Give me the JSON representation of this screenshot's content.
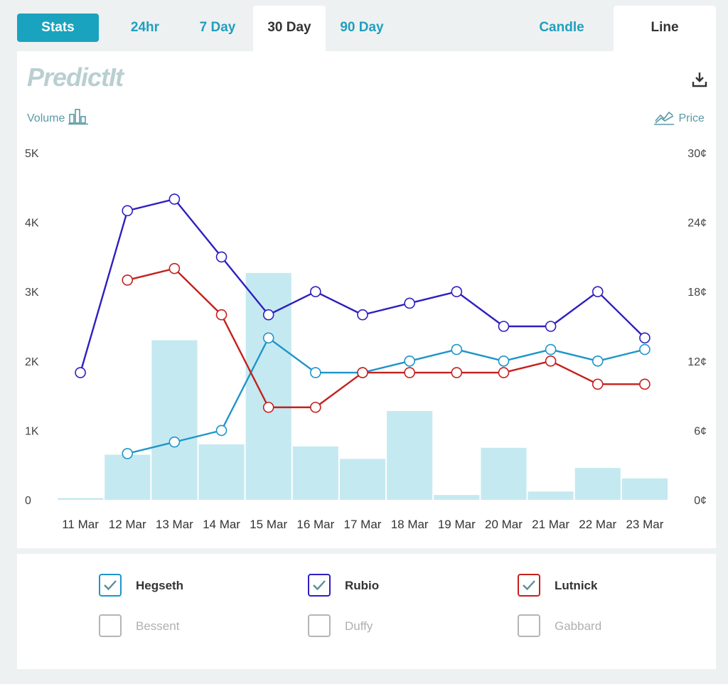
{
  "tabs": {
    "stats": "Stats",
    "ranges": [
      {
        "label": "24hr",
        "active": false
      },
      {
        "label": "7 Day",
        "active": false
      },
      {
        "label": "30 Day",
        "active": true
      },
      {
        "label": "90 Day",
        "active": false
      }
    ],
    "chart_types": [
      {
        "label": "Candle",
        "active": false
      },
      {
        "label": "Line",
        "active": true
      }
    ]
  },
  "brand": {
    "logo_text": "PredictIt"
  },
  "axis_captions": {
    "volume": "Volume",
    "price": "Price"
  },
  "icons": {
    "volume": "bar-chart-icon",
    "price": "line-chart-icon",
    "download": "download-icon",
    "check": "checkmark-icon"
  },
  "chart_data": {
    "type": "line",
    "categories": [
      "11 Mar",
      "12 Mar",
      "13 Mar",
      "14 Mar",
      "15 Mar",
      "16 Mar",
      "17 Mar",
      "18 Mar",
      "19 Mar",
      "20 Mar",
      "21 Mar",
      "22 Mar",
      "23 Mar"
    ],
    "volume_axis": {
      "ticks": [
        "0",
        "1K",
        "2K",
        "3K",
        "4K",
        "5K"
      ],
      "tick_values": [
        0,
        1000,
        2000,
        3000,
        4000,
        5000
      ],
      "ylim": [
        0,
        5000
      ]
    },
    "price_axis": {
      "ticks": [
        "0¢",
        "6¢",
        "12¢",
        "18¢",
        "24¢",
        "30¢"
      ],
      "tick_values": [
        0,
        6,
        12,
        18,
        24,
        30
      ],
      "ylim": [
        0,
        30
      ]
    },
    "volume": [
      25,
      650,
      2300,
      800,
      3270,
      770,
      590,
      1280,
      70,
      750,
      120,
      460,
      310
    ],
    "series": [
      {
        "name": "Hegseth",
        "color": "#1e95c9",
        "values": [
          null,
          4,
          5,
          6,
          14,
          11,
          11,
          12,
          13,
          12,
          13,
          12,
          13
        ]
      },
      {
        "name": "Rubio",
        "color": "#2e1fbf",
        "values": [
          11,
          25,
          26,
          21,
          16,
          18,
          16,
          17,
          18,
          15,
          15,
          18,
          14
        ]
      },
      {
        "name": "Lutnick",
        "color": "#c4201e",
        "values": [
          null,
          19,
          20,
          16,
          8,
          8,
          11,
          11,
          11,
          11,
          12,
          10,
          10
        ]
      }
    ],
    "volume_color": "#c5e9f0",
    "grid": false
  },
  "legend": [
    {
      "name": "Hegseth",
      "checked": true,
      "color": "#1e95c9"
    },
    {
      "name": "Rubio",
      "checked": true,
      "color": "#2e1fbf"
    },
    {
      "name": "Lutnick",
      "checked": true,
      "color": "#c4201e"
    },
    {
      "name": "Bessent",
      "checked": false,
      "color": "#b5b5b5"
    },
    {
      "name": "Duffy",
      "checked": false,
      "color": "#b5b5b5"
    },
    {
      "name": "Gabbard",
      "checked": false,
      "color": "#b5b5b5"
    }
  ]
}
